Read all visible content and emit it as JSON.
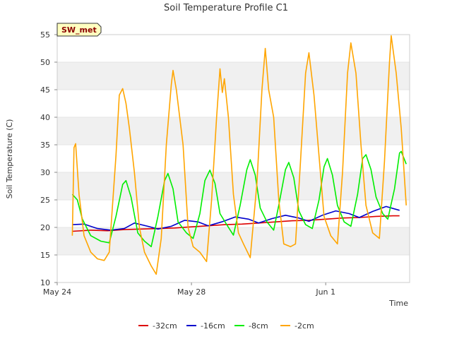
{
  "chart_data": {
    "type": "line",
    "title": "Soil Temperature Profile C1",
    "xlabel": "Time",
    "ylabel": "Soil Temperature (C)",
    "station_label": "SW_met",
    "x_unit": "day",
    "x_range": [
      "2024-05-24T00:00",
      "2024-06-03T12:00"
    ],
    "xlim": [
      0,
      10.5
    ],
    "ylim": [
      10,
      55
    ],
    "yticks": [
      10,
      15,
      20,
      25,
      30,
      35,
      40,
      45,
      50,
      55
    ],
    "xticks": [
      {
        "value": 0,
        "label": "May 24"
      },
      {
        "value": 4,
        "label": "May 28"
      },
      {
        "value": 8,
        "label": "Jun 1"
      }
    ],
    "grid": "horizontal alternating bands",
    "legend_position": "bottom",
    "series": [
      {
        "name": "-32cm",
        "color": "#dd0000",
        "points": [
          [
            0.45,
            19.3
          ],
          [
            1.0,
            19.5
          ],
          [
            1.5,
            19.4
          ],
          [
            2.0,
            19.6
          ],
          [
            2.5,
            19.7
          ],
          [
            3.0,
            19.8
          ],
          [
            3.5,
            19.9
          ],
          [
            4.0,
            20.1
          ],
          [
            4.5,
            20.3
          ],
          [
            5.0,
            20.5
          ],
          [
            5.5,
            20.6
          ],
          [
            6.0,
            20.8
          ],
          [
            6.5,
            21.0
          ],
          [
            7.0,
            21.2
          ],
          [
            7.5,
            21.3
          ],
          [
            8.0,
            21.5
          ],
          [
            8.5,
            21.7
          ],
          [
            9.0,
            21.8
          ],
          [
            9.5,
            22.0
          ],
          [
            10.0,
            22.1
          ],
          [
            10.2,
            22.1
          ]
        ]
      },
      {
        "name": "-16cm",
        "color": "#0000cc",
        "points": [
          [
            0.45,
            20.5
          ],
          [
            0.8,
            20.6
          ],
          [
            1.2,
            19.8
          ],
          [
            1.6,
            19.5
          ],
          [
            2.0,
            19.8
          ],
          [
            2.3,
            20.8
          ],
          [
            2.7,
            20.2
          ],
          [
            3.0,
            19.7
          ],
          [
            3.4,
            20.2
          ],
          [
            3.8,
            21.3
          ],
          [
            4.2,
            21.0
          ],
          [
            4.5,
            20.3
          ],
          [
            4.9,
            21.0
          ],
          [
            5.3,
            21.9
          ],
          [
            5.7,
            21.5
          ],
          [
            6.0,
            20.8
          ],
          [
            6.4,
            21.6
          ],
          [
            6.8,
            22.2
          ],
          [
            7.2,
            21.7
          ],
          [
            7.5,
            21.1
          ],
          [
            7.9,
            22.2
          ],
          [
            8.3,
            23.0
          ],
          [
            8.7,
            22.5
          ],
          [
            9.0,
            21.8
          ],
          [
            9.4,
            22.9
          ],
          [
            9.8,
            23.8
          ],
          [
            10.2,
            23.1
          ]
        ]
      },
      {
        "name": "-8cm",
        "color": "#00ee00",
        "points": [
          [
            0.45,
            26.0
          ],
          [
            0.6,
            25.0
          ],
          [
            0.75,
            21.5
          ],
          [
            1.0,
            18.5
          ],
          [
            1.3,
            17.5
          ],
          [
            1.55,
            17.2
          ],
          [
            1.75,
            22.0
          ],
          [
            1.95,
            27.8
          ],
          [
            2.05,
            28.5
          ],
          [
            2.2,
            25.5
          ],
          [
            2.4,
            19.0
          ],
          [
            2.6,
            17.5
          ],
          [
            2.8,
            16.5
          ],
          [
            3.0,
            22.0
          ],
          [
            3.2,
            28.5
          ],
          [
            3.3,
            29.8
          ],
          [
            3.45,
            27.0
          ],
          [
            3.6,
            21.0
          ],
          [
            3.85,
            19.0
          ],
          [
            4.05,
            18.0
          ],
          [
            4.25,
            22.5
          ],
          [
            4.4,
            28.5
          ],
          [
            4.55,
            30.4
          ],
          [
            4.7,
            28.0
          ],
          [
            4.85,
            22.5
          ],
          [
            5.05,
            20.5
          ],
          [
            5.25,
            18.6
          ],
          [
            5.45,
            24.0
          ],
          [
            5.65,
            30.5
          ],
          [
            5.75,
            32.3
          ],
          [
            5.9,
            29.5
          ],
          [
            6.05,
            23.5
          ],
          [
            6.25,
            21.0
          ],
          [
            6.45,
            19.5
          ],
          [
            6.6,
            24.0
          ],
          [
            6.8,
            30.5
          ],
          [
            6.9,
            31.8
          ],
          [
            7.05,
            29.0
          ],
          [
            7.2,
            23.0
          ],
          [
            7.4,
            20.5
          ],
          [
            7.6,
            19.8
          ],
          [
            7.8,
            25.0
          ],
          [
            7.95,
            31.0
          ],
          [
            8.05,
            32.5
          ],
          [
            8.2,
            29.5
          ],
          [
            8.35,
            24.0
          ],
          [
            8.55,
            21.0
          ],
          [
            8.75,
            20.2
          ],
          [
            8.95,
            26.0
          ],
          [
            9.1,
            32.5
          ],
          [
            9.2,
            33.2
          ],
          [
            9.35,
            30.5
          ],
          [
            9.5,
            25.5
          ],
          [
            9.7,
            22.5
          ],
          [
            9.85,
            21.5
          ],
          [
            10.05,
            27.0
          ],
          [
            10.2,
            33.5
          ],
          [
            10.25,
            33.8
          ],
          [
            10.4,
            31.5
          ],
          [
            10.55,
            26.0
          ],
          [
            10.7,
            23.0
          ],
          [
            10.85,
            22.0
          ]
        ]
      },
      {
        "name": "-2cm",
        "color": "#ffa500",
        "points": [
          [
            0.45,
            18.5
          ],
          [
            0.5,
            34.5
          ],
          [
            0.55,
            35.2
          ],
          [
            0.65,
            26.0
          ],
          [
            0.8,
            18.5
          ],
          [
            1.0,
            15.5
          ],
          [
            1.2,
            14.3
          ],
          [
            1.4,
            14.0
          ],
          [
            1.55,
            15.5
          ],
          [
            1.75,
            33.0
          ],
          [
            1.85,
            44.0
          ],
          [
            1.95,
            45.2
          ],
          [
            2.05,
            42.5
          ],
          [
            2.15,
            38.0
          ],
          [
            2.3,
            30.0
          ],
          [
            2.45,
            20.0
          ],
          [
            2.6,
            15.5
          ],
          [
            2.8,
            13.0
          ],
          [
            2.95,
            11.5
          ],
          [
            3.1,
            18.0
          ],
          [
            3.25,
            35.0
          ],
          [
            3.4,
            46.0
          ],
          [
            3.45,
            48.5
          ],
          [
            3.55,
            45.0
          ],
          [
            3.75,
            35.0
          ],
          [
            3.9,
            20.0
          ],
          [
            4.05,
            16.5
          ],
          [
            4.25,
            15.5
          ],
          [
            4.45,
            13.8
          ],
          [
            4.6,
            25.0
          ],
          [
            4.75,
            40.0
          ],
          [
            4.85,
            48.8
          ],
          [
            4.92,
            44.5
          ],
          [
            4.98,
            47.0
          ],
          [
            5.1,
            40.0
          ],
          [
            5.25,
            26.0
          ],
          [
            5.4,
            19.0
          ],
          [
            5.55,
            17.0
          ],
          [
            5.75,
            14.5
          ],
          [
            5.95,
            28.0
          ],
          [
            6.1,
            45.0
          ],
          [
            6.2,
            52.5
          ],
          [
            6.3,
            45.0
          ],
          [
            6.45,
            40.0
          ],
          [
            6.6,
            25.0
          ],
          [
            6.75,
            17.0
          ],
          [
            6.95,
            16.5
          ],
          [
            7.1,
            17.0
          ],
          [
            7.25,
            32.0
          ],
          [
            7.4,
            48.0
          ],
          [
            7.5,
            51.7
          ],
          [
            7.65,
            44.0
          ],
          [
            7.8,
            33.0
          ],
          [
            7.95,
            22.0
          ],
          [
            8.15,
            18.5
          ],
          [
            8.35,
            17.0
          ],
          [
            8.5,
            30.0
          ],
          [
            8.65,
            48.0
          ],
          [
            8.75,
            53.5
          ],
          [
            8.9,
            48.0
          ],
          [
            9.05,
            35.0
          ],
          [
            9.2,
            24.0
          ],
          [
            9.4,
            19.0
          ],
          [
            9.6,
            18.0
          ],
          [
            9.75,
            32.0
          ],
          [
            9.9,
            50.0
          ],
          [
            9.95,
            54.8
          ],
          [
            10.1,
            48.0
          ],
          [
            10.25,
            38.0
          ],
          [
            10.4,
            24.0
          ],
          [
            10.6,
            19.5
          ],
          [
            10.75,
            17.8
          ],
          [
            10.9,
            32.0
          ],
          [
            11.0,
            52.0
          ],
          [
            11.05,
            54.5
          ],
          [
            11.15,
            44.0
          ],
          [
            11.25,
            42.5
          ],
          [
            11.4,
            28.0
          ],
          [
            11.55,
            22.0
          ],
          [
            11.7,
            18.5
          ]
        ]
      }
    ]
  }
}
